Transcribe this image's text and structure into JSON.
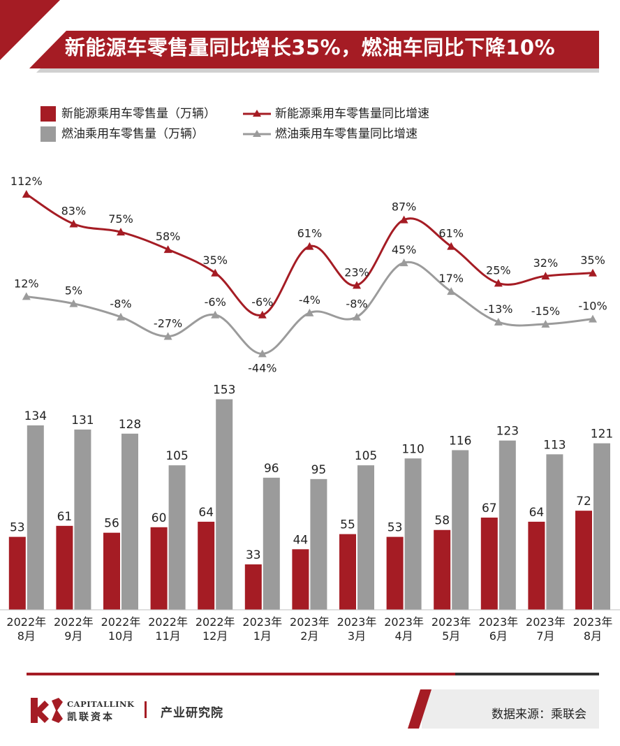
{
  "title": "新能源车零售量同比增长35%，燃油车同比下降10%",
  "legend": {
    "nev_sales": "新能源乘用车零售量（万辆）",
    "nev_growth": "新能源乘用车零售量同比增速",
    "ice_sales": "燃油乘用车零售量（万辆）",
    "ice_growth": "燃油乘用车零售量同比增速"
  },
  "colors": {
    "nev": "#a51c24",
    "ice": "#9b9b9b",
    "banner": "#a51c24",
    "text": "#222222"
  },
  "chart_data": {
    "type": "bar",
    "categories": [
      [
        "2022年",
        "8月"
      ],
      [
        "2022年",
        "9月"
      ],
      [
        "2022年",
        "10月"
      ],
      [
        "2022年",
        "11月"
      ],
      [
        "2022年",
        "12月"
      ],
      [
        "2023年",
        "1月"
      ],
      [
        "2023年",
        "2月"
      ],
      [
        "2023年",
        "3月"
      ],
      [
        "2023年",
        "4月"
      ],
      [
        "2023年",
        "5月"
      ],
      [
        "2023年",
        "6月"
      ],
      [
        "2023年",
        "7月"
      ],
      [
        "2023年",
        "8月"
      ]
    ],
    "series": [
      {
        "name": "新能源乘用车零售量（万辆）",
        "kind": "bar",
        "values": [
          53,
          61,
          56,
          60,
          64,
          33,
          44,
          55,
          53,
          58,
          67,
          64,
          72
        ]
      },
      {
        "name": "燃油乘用车零售量（万辆）",
        "kind": "bar",
        "values": [
          134,
          131,
          128,
          105,
          153,
          96,
          95,
          105,
          110,
          116,
          123,
          113,
          121
        ]
      },
      {
        "name": "新能源乘用车零售量同比增速",
        "kind": "line",
        "unit": "%",
        "values": [
          112,
          83,
          75,
          58,
          35,
          -6,
          61,
          23,
          87,
          61,
          25,
          32,
          35
        ]
      },
      {
        "name": "燃油乘用车零售量同比增速",
        "kind": "line",
        "unit": "%",
        "values": [
          12,
          5,
          -8,
          -27,
          -6,
          -44,
          -4,
          -8,
          45,
          17,
          -13,
          -15,
          -10
        ]
      }
    ]
  },
  "footer": {
    "brand_en": "CAPITALLINK",
    "brand_cn": "凯联资本",
    "department": "产业研究院",
    "source": "数据来源：乘联会"
  }
}
